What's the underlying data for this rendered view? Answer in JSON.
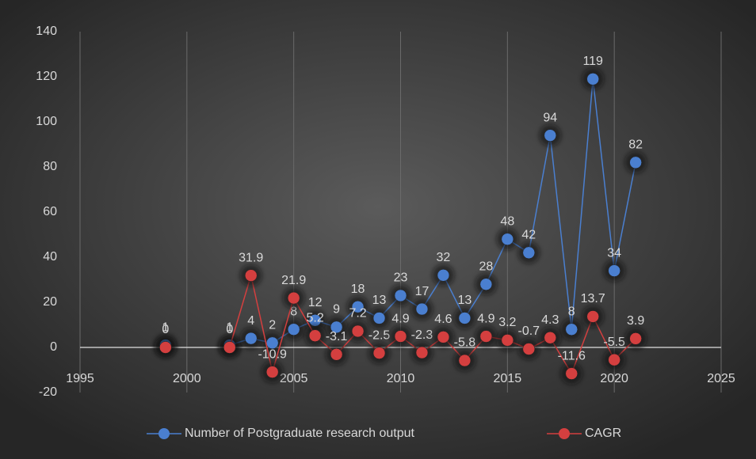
{
  "chart_data": {
    "type": "line",
    "x": [
      1999,
      2000,
      2001,
      2002,
      2003,
      2004,
      2005,
      2006,
      2007,
      2008,
      2009,
      2010,
      2011,
      2012,
      2013,
      2014,
      2015,
      2016,
      2017,
      2018,
      2019,
      2020,
      2021
    ],
    "series": [
      {
        "name": "Number of Postgraduate research output",
        "color": "#4a7fd0",
        "values": [
          1,
          null,
          null,
          1,
          4,
          2,
          8,
          12,
          9,
          18,
          13,
          23,
          17,
          32,
          13,
          28,
          48,
          42,
          94,
          8,
          119,
          34,
          82
        ]
      },
      {
        "name": "CAGR",
        "color": "#d43f3f",
        "values": [
          0,
          null,
          null,
          0,
          31.9,
          -10.9,
          21.9,
          5.2,
          -3.1,
          7.2,
          -2.5,
          4.9,
          -2.3,
          4.6,
          -5.8,
          4.9,
          3.2,
          -0.7,
          4.3,
          -11.6,
          13.7,
          -5.5,
          3.9
        ]
      }
    ],
    "xlim": [
      1995,
      2025
    ],
    "xticks": [
      1995,
      2000,
      2005,
      2010,
      2015,
      2020,
      2025
    ],
    "ylim": [
      -20,
      140
    ],
    "yticks": [
      -20,
      0,
      20,
      40,
      60,
      80,
      100,
      120,
      140
    ],
    "grid": "x",
    "legend": "bottom"
  }
}
